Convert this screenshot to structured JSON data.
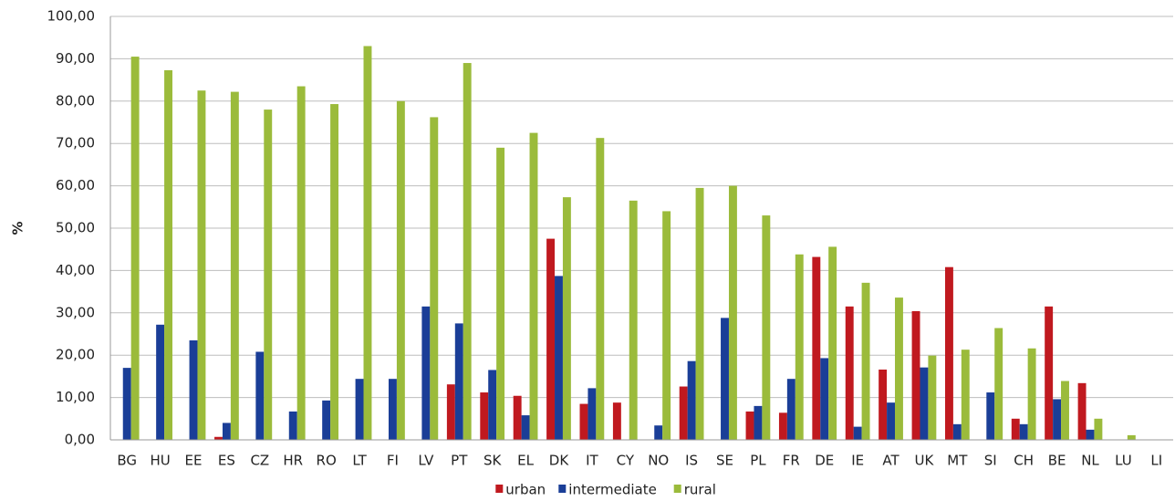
{
  "chart_data": {
    "type": "bar",
    "y_label": "%",
    "categories": [
      "BG",
      "HU",
      "EE",
      "ES",
      "CZ",
      "HR",
      "RO",
      "LT",
      "FI",
      "LV",
      "PT",
      "SK",
      "EL",
      "DK",
      "IT",
      "CY",
      "NO",
      "IS",
      "SE",
      "PL",
      "FR",
      "DE",
      "IE",
      "AT",
      "UK",
      "MT",
      "SI",
      "CH",
      "BE",
      "NL",
      "LU",
      "LI"
    ],
    "series": [
      {
        "name": "urban",
        "color": "#c0191f",
        "values": [
          0,
          0,
          0,
          0.7,
          0,
          0,
          0,
          0,
          0,
          0,
          13.1,
          11.2,
          10.4,
          47.5,
          8.5,
          8.8,
          0,
          12.6,
          0,
          6.7,
          6.4,
          43.2,
          31.5,
          16.6,
          30.4,
          40.8,
          0,
          5.0,
          31.5,
          13.4,
          0,
          0
        ]
      },
      {
        "name": "intermediate",
        "color": "#1a3e97",
        "values": [
          17.0,
          27.2,
          23.5,
          4.0,
          20.8,
          6.7,
          9.3,
          14.4,
          14.4,
          31.5,
          27.5,
          16.5,
          5.8,
          38.7,
          12.2,
          0,
          3.4,
          18.6,
          28.8,
          8.0,
          14.4,
          19.3,
          3.1,
          8.8,
          17.1,
          3.7,
          11.2,
          3.7,
          9.6,
          2.4,
          0,
          0
        ]
      },
      {
        "name": "rural",
        "color": "#9bbb3b",
        "values": [
          90.5,
          87.3,
          82.5,
          82.2,
          78.0,
          83.5,
          79.3,
          93.0,
          80.0,
          76.2,
          89.0,
          69.0,
          72.5,
          57.3,
          71.3,
          56.5,
          54.0,
          59.5,
          60.0,
          53.0,
          43.8,
          45.6,
          37.1,
          33.6,
          19.9,
          21.3,
          26.4,
          21.6,
          13.9,
          5.0,
          1.1,
          0
        ]
      }
    ],
    "ylim": [
      0,
      100
    ],
    "yticks": [
      {
        "value": 0,
        "label": "0,00"
      },
      {
        "value": 10,
        "label": "10,00"
      },
      {
        "value": 20,
        "label": "20,00"
      },
      {
        "value": 30,
        "label": "30,00"
      },
      {
        "value": 40,
        "label": "40,00"
      },
      {
        "value": 50,
        "label": "50,00"
      },
      {
        "value": 60,
        "label": "60,00"
      },
      {
        "value": 70,
        "label": "70,00"
      },
      {
        "value": 80,
        "label": "80,00"
      },
      {
        "value": 90,
        "label": "90,00"
      },
      {
        "value": 100,
        "label": "100,00"
      }
    ],
    "grid": true,
    "legend": "bottom"
  }
}
